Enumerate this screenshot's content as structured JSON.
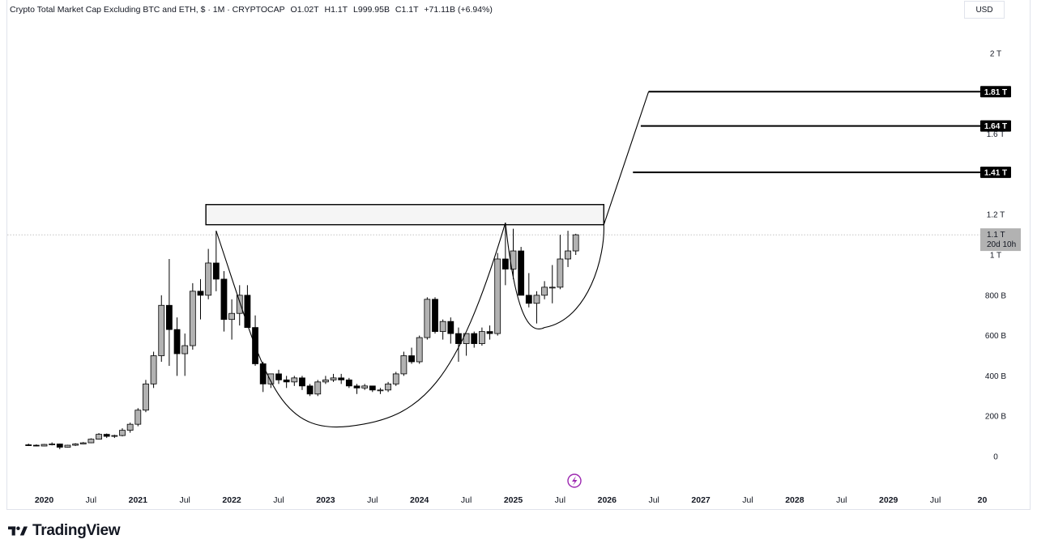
{
  "header": {
    "symbol": "Crypto Total Market Cap Excluding BTC and ETH, $ · 1M · CRYPTOCAP",
    "open": "O1.02T",
    "high": "H1.1T",
    "low": "L999.95B",
    "close": "C1.1T",
    "change": "+71.11B (+6.94%)"
  },
  "currency": "USD",
  "brand": "TradingView",
  "colors": {
    "up": "#b2b2b2",
    "down": "#000000",
    "outline": "#000000",
    "grid": "#e0e3eb",
    "level_bg": "#000000",
    "price_bg": "#b2b2b2"
  },
  "chart_data": {
    "type": "candlestick",
    "interval": "1M",
    "y_unit": "USD",
    "ylim": [
      0,
      2000000000000
    ],
    "y_ticks": [
      "0",
      "200 B",
      "400 B",
      "600 B",
      "800 B",
      "1 T",
      "1.2 T",
      "1.6 T",
      "2 T"
    ],
    "x_ticks": [
      "2020",
      "Jul",
      "2021",
      "Jul",
      "2022",
      "Jul",
      "2023",
      "Jul",
      "2024",
      "Jul",
      "2025",
      "Jul",
      "2026",
      "Jul",
      "2027",
      "Jul",
      "2028",
      "Jul",
      "2029",
      "Jul",
      "20"
    ],
    "last_price_label": "1.1 T",
    "countdown": "20d 10h",
    "levels": [
      {
        "value": 1410000000000,
        "label": "1.41 T"
      },
      {
        "value": 1640000000000,
        "label": "1.64 T"
      },
      {
        "value": 1810000000000,
        "label": "1.81 T"
      }
    ],
    "resistance_zone": {
      "from": 1150000000000,
      "to": 1250000000000,
      "start": "2021-10",
      "end": "2026-01"
    },
    "candles": [
      {
        "t": "2019-11",
        "o": 58,
        "h": 64,
        "l": 52,
        "c": 56
      },
      {
        "t": "2019-12",
        "o": 56,
        "h": 60,
        "l": 50,
        "c": 52
      },
      {
        "t": "2020-01",
        "o": 52,
        "h": 62,
        "l": 50,
        "c": 60
      },
      {
        "t": "2020-02",
        "o": 60,
        "h": 70,
        "l": 55,
        "c": 62
      },
      {
        "t": "2020-03",
        "o": 62,
        "h": 64,
        "l": 36,
        "c": 46
      },
      {
        "t": "2020-04",
        "o": 46,
        "h": 58,
        "l": 44,
        "c": 56
      },
      {
        "t": "2020-05",
        "o": 56,
        "h": 66,
        "l": 52,
        "c": 62
      },
      {
        "t": "2020-06",
        "o": 62,
        "h": 72,
        "l": 60,
        "c": 68
      },
      {
        "t": "2020-07",
        "o": 68,
        "h": 90,
        "l": 66,
        "c": 86
      },
      {
        "t": "2020-08",
        "o": 86,
        "h": 116,
        "l": 84,
        "c": 110
      },
      {
        "t": "2020-09",
        "o": 110,
        "h": 114,
        "l": 92,
        "c": 100
      },
      {
        "t": "2020-10",
        "o": 100,
        "h": 108,
        "l": 92,
        "c": 104
      },
      {
        "t": "2020-11",
        "o": 104,
        "h": 140,
        "l": 100,
        "c": 130
      },
      {
        "t": "2020-12",
        "o": 130,
        "h": 168,
        "l": 118,
        "c": 160
      },
      {
        "t": "2021-01",
        "o": 160,
        "h": 240,
        "l": 150,
        "c": 230
      },
      {
        "t": "2021-02",
        "o": 230,
        "h": 380,
        "l": 220,
        "c": 360
      },
      {
        "t": "2021-03",
        "o": 360,
        "h": 520,
        "l": 340,
        "c": 500
      },
      {
        "t": "2021-04",
        "o": 500,
        "h": 800,
        "l": 470,
        "c": 750
      },
      {
        "t": "2021-05",
        "o": 750,
        "h": 980,
        "l": 450,
        "c": 630
      },
      {
        "t": "2021-06",
        "o": 630,
        "h": 690,
        "l": 400,
        "c": 510
      },
      {
        "t": "2021-07",
        "o": 510,
        "h": 610,
        "l": 400,
        "c": 550
      },
      {
        "t": "2021-08",
        "o": 550,
        "h": 860,
        "l": 530,
        "c": 820
      },
      {
        "t": "2021-09",
        "o": 820,
        "h": 880,
        "l": 680,
        "c": 800
      },
      {
        "t": "2021-10",
        "o": 800,
        "h": 1030,
        "l": 780,
        "c": 960
      },
      {
        "t": "2021-11",
        "o": 960,
        "h": 1120,
        "l": 820,
        "c": 880
      },
      {
        "t": "2021-12",
        "o": 880,
        "h": 920,
        "l": 620,
        "c": 680
      },
      {
        "t": "2022-01",
        "o": 680,
        "h": 780,
        "l": 580,
        "c": 710
      },
      {
        "t": "2022-02",
        "o": 710,
        "h": 850,
        "l": 650,
        "c": 800
      },
      {
        "t": "2022-03",
        "o": 800,
        "h": 850,
        "l": 640,
        "c": 640
      },
      {
        "t": "2022-04",
        "o": 640,
        "h": 700,
        "l": 450,
        "c": 460
      },
      {
        "t": "2022-05",
        "o": 460,
        "h": 470,
        "l": 320,
        "c": 360
      },
      {
        "t": "2022-06",
        "o": 360,
        "h": 410,
        "l": 340,
        "c": 410
      },
      {
        "t": "2022-07",
        "o": 410,
        "h": 430,
        "l": 360,
        "c": 380
      },
      {
        "t": "2022-08",
        "o": 380,
        "h": 400,
        "l": 340,
        "c": 370
      },
      {
        "t": "2022-09",
        "o": 370,
        "h": 400,
        "l": 350,
        "c": 390
      },
      {
        "t": "2022-10",
        "o": 390,
        "h": 400,
        "l": 330,
        "c": 350
      },
      {
        "t": "2022-11",
        "o": 350,
        "h": 360,
        "l": 300,
        "c": 310
      },
      {
        "t": "2022-12",
        "o": 310,
        "h": 380,
        "l": 300,
        "c": 370
      },
      {
        "t": "2023-01",
        "o": 370,
        "h": 400,
        "l": 360,
        "c": 380
      },
      {
        "t": "2023-02",
        "o": 380,
        "h": 410,
        "l": 370,
        "c": 390
      },
      {
        "t": "2023-03",
        "o": 390,
        "h": 410,
        "l": 360,
        "c": 380
      },
      {
        "t": "2023-04",
        "o": 380,
        "h": 390,
        "l": 340,
        "c": 350
      },
      {
        "t": "2023-05",
        "o": 350,
        "h": 360,
        "l": 310,
        "c": 340
      },
      {
        "t": "2023-06",
        "o": 340,
        "h": 360,
        "l": 330,
        "c": 350
      },
      {
        "t": "2023-07",
        "o": 350,
        "h": 350,
        "l": 320,
        "c": 330
      },
      {
        "t": "2023-08",
        "o": 330,
        "h": 340,
        "l": 310,
        "c": 330
      },
      {
        "t": "2023-09",
        "o": 330,
        "h": 370,
        "l": 320,
        "c": 360
      },
      {
        "t": "2023-10",
        "o": 360,
        "h": 420,
        "l": 350,
        "c": 410
      },
      {
        "t": "2023-11",
        "o": 410,
        "h": 520,
        "l": 400,
        "c": 500
      },
      {
        "t": "2023-12",
        "o": 500,
        "h": 540,
        "l": 460,
        "c": 470
      },
      {
        "t": "2024-01",
        "o": 470,
        "h": 600,
        "l": 460,
        "c": 590
      },
      {
        "t": "2024-02",
        "o": 590,
        "h": 790,
        "l": 580,
        "c": 780
      },
      {
        "t": "2024-03",
        "o": 780,
        "h": 790,
        "l": 610,
        "c": 620
      },
      {
        "t": "2024-04",
        "o": 620,
        "h": 680,
        "l": 580,
        "c": 670
      },
      {
        "t": "2024-05",
        "o": 670,
        "h": 690,
        "l": 560,
        "c": 610
      },
      {
        "t": "2024-06",
        "o": 610,
        "h": 640,
        "l": 470,
        "c": 560
      },
      {
        "t": "2024-07",
        "o": 560,
        "h": 600,
        "l": 500,
        "c": 610
      },
      {
        "t": "2024-08",
        "o": 610,
        "h": 620,
        "l": 540,
        "c": 560
      },
      {
        "t": "2024-09",
        "o": 560,
        "h": 640,
        "l": 550,
        "c": 620
      },
      {
        "t": "2024-10",
        "o": 620,
        "h": 650,
        "l": 580,
        "c": 610
      },
      {
        "t": "2024-11",
        "o": 610,
        "h": 1010,
        "l": 600,
        "c": 980
      },
      {
        "t": "2024-12",
        "o": 980,
        "h": 1150,
        "l": 850,
        "c": 930
      },
      {
        "t": "2025-01",
        "o": 930,
        "h": 1130,
        "l": 880,
        "c": 1020
      },
      {
        "t": "2025-02",
        "o": 1020,
        "h": 1040,
        "l": 800,
        "c": 800
      },
      {
        "t": "2025-03",
        "o": 800,
        "h": 910,
        "l": 740,
        "c": 760
      },
      {
        "t": "2025-04",
        "o": 760,
        "h": 820,
        "l": 660,
        "c": 800
      },
      {
        "t": "2025-05",
        "o": 800,
        "h": 870,
        "l": 780,
        "c": 840
      },
      {
        "t": "2025-06",
        "o": 840,
        "h": 950,
        "l": 760,
        "c": 840
      },
      {
        "t": "2025-07",
        "o": 840,
        "h": 1100,
        "l": 830,
        "c": 980
      },
      {
        "t": "2025-08",
        "o": 980,
        "h": 1120,
        "l": 940,
        "c": 1020
      },
      {
        "t": "2025-09",
        "o": 1020,
        "h": 1105,
        "l": 1000,
        "c": 1100
      }
    ]
  }
}
